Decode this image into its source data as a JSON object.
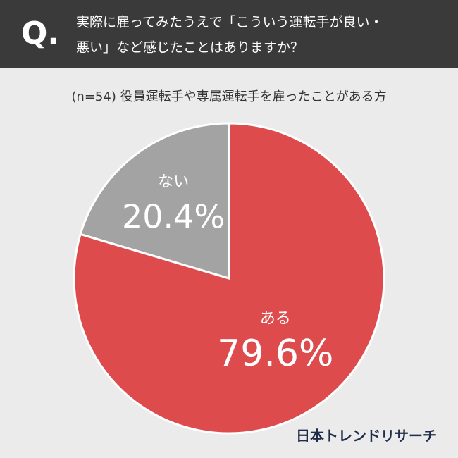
{
  "header": {
    "mark": "Q.",
    "lines": [
      "実際に雇ってみたうえで「こういう運転手が良い・",
      "悪い」など感じたことはありますか？"
    ]
  },
  "chart_data": {
    "type": "pie",
    "subtitle": "(n=54) 役員運転手や専属運転手を雇ったことがある方",
    "categories": [
      "ある",
      "ない"
    ],
    "values": [
      79.6,
      20.4
    ],
    "value_labels": [
      "79.6%",
      "20.4%"
    ],
    "colors": [
      "#dd4b4c",
      "#a3a3a3"
    ]
  },
  "footer": "日本トレンドリサーチ"
}
